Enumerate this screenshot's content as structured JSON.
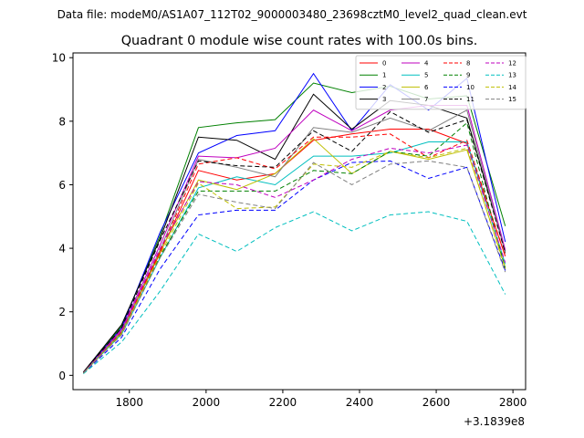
{
  "header": "Data file: modeM0/AS1A07_112T02_9000003480_23698cztM0_level2_quad_clean.evt",
  "chart_data": {
    "type": "line",
    "title": "Quadrant 0 module wise count rates with 100.0s bins.",
    "xlabel": "",
    "ylabel": "",
    "offset_label": "+3.1839e8",
    "xlim": [
      1653,
      2833
    ],
    "ylim": [
      -0.45,
      10.15
    ],
    "x_ticks": [
      1800,
      2000,
      2200,
      2400,
      2600,
      2800
    ],
    "x_tick_labels": [
      "1800",
      "2000",
      "2200",
      "2400",
      "2600",
      "2800"
    ],
    "y_ticks": [
      0,
      2,
      4,
      6,
      8,
      10
    ],
    "y_tick_labels": [
      "0",
      "2",
      "4",
      "6",
      "8",
      "10"
    ],
    "grid": false,
    "legend_position": "upper right",
    "x": [
      1680,
      1780,
      1880,
      1980,
      2080,
      2180,
      2280,
      2380,
      2480,
      2580,
      2680,
      2780
    ],
    "series": [
      {
        "name": "0",
        "color": "#ff0000",
        "dash": "solid",
        "values": [
          0.08,
          1.35,
          3.85,
          6.45,
          6.15,
          6.35,
          7.4,
          7.6,
          7.75,
          7.75,
          7.3,
          3.75
        ]
      },
      {
        "name": "1",
        "color": "#008000",
        "dash": "solid",
        "values": [
          0.1,
          1.55,
          4.4,
          7.8,
          7.95,
          8.05,
          9.2,
          8.9,
          9.1,
          8.7,
          8.8,
          4.7
        ]
      },
      {
        "name": "2",
        "color": "#0000ff",
        "dash": "solid",
        "values": [
          0.09,
          1.5,
          4.5,
          7.0,
          7.55,
          7.7,
          9.5,
          7.7,
          9.15,
          8.35,
          9.35,
          4.2
        ]
      },
      {
        "name": "3",
        "color": "#000000",
        "dash": "solid",
        "values": [
          0.1,
          1.6,
          4.3,
          7.5,
          7.4,
          6.8,
          8.85,
          7.75,
          8.65,
          8.5,
          8.1,
          3.9
        ]
      },
      {
        "name": "4",
        "color": "#bf00bf",
        "dash": "solid",
        "values": [
          0.08,
          1.45,
          4.1,
          6.9,
          6.85,
          7.15,
          8.35,
          7.7,
          8.35,
          8.5,
          8.5,
          3.95
        ]
      },
      {
        "name": "5",
        "color": "#00bfbf",
        "dash": "solid",
        "values": [
          0.07,
          1.3,
          3.7,
          5.9,
          6.25,
          6.0,
          6.9,
          6.9,
          7.0,
          7.35,
          7.35,
          3.5
        ]
      },
      {
        "name": "6",
        "color": "#bfbf00",
        "dash": "solid",
        "values": [
          0.07,
          1.35,
          3.9,
          6.15,
          5.85,
          6.35,
          7.45,
          6.35,
          7.05,
          6.8,
          7.1,
          3.4
        ]
      },
      {
        "name": "7",
        "color": "#808080",
        "dash": "solid",
        "values": [
          0.08,
          1.4,
          3.95,
          6.8,
          6.55,
          6.25,
          7.8,
          7.65,
          8.1,
          7.7,
          8.35,
          3.85
        ]
      },
      {
        "name": "8",
        "color": "#ff0000",
        "dash": "dashed",
        "values": [
          0.08,
          1.38,
          3.9,
          6.65,
          6.85,
          6.5,
          7.5,
          7.5,
          7.6,
          6.85,
          7.4,
          3.75
        ]
      },
      {
        "name": "9",
        "color": "#008000",
        "dash": "dashed",
        "values": [
          0.07,
          1.33,
          3.75,
          5.8,
          5.8,
          5.8,
          6.45,
          6.35,
          7.05,
          6.9,
          7.95,
          3.35
        ]
      },
      {
        "name": "10",
        "color": "#0000ff",
        "dash": "dashed",
        "values": [
          0.06,
          1.2,
          3.35,
          5.05,
          5.2,
          5.2,
          6.15,
          6.7,
          6.75,
          6.2,
          6.55,
          3.3
        ]
      },
      {
        "name": "11",
        "color": "#000000",
        "dash": "dashed",
        "values": [
          0.09,
          1.5,
          4.25,
          6.75,
          6.6,
          6.55,
          7.7,
          7.05,
          8.3,
          7.65,
          8.05,
          3.85
        ]
      },
      {
        "name": "12",
        "color": "#bf00bf",
        "dash": "dashed",
        "values": [
          0.08,
          1.4,
          4.0,
          6.1,
          6.0,
          5.6,
          6.15,
          6.8,
          7.15,
          7.0,
          7.25,
          3.55
        ]
      },
      {
        "name": "13",
        "color": "#00bfbf",
        "dash": "dashed",
        "values": [
          0.05,
          1.05,
          2.65,
          4.45,
          3.9,
          4.65,
          5.15,
          4.55,
          5.05,
          5.15,
          4.85,
          2.55
        ]
      },
      {
        "name": "14",
        "color": "#bfbf00",
        "dash": "dashed",
        "values": [
          0.07,
          1.32,
          3.8,
          6.05,
          5.25,
          5.3,
          6.65,
          6.55,
          7.05,
          6.85,
          7.15,
          3.35
        ]
      },
      {
        "name": "15",
        "color": "#808080",
        "dash": "dashed",
        "values": [
          0.07,
          1.28,
          3.7,
          5.7,
          5.45,
          5.25,
          6.7,
          6.0,
          6.65,
          6.75,
          6.55,
          3.25
        ]
      }
    ]
  }
}
